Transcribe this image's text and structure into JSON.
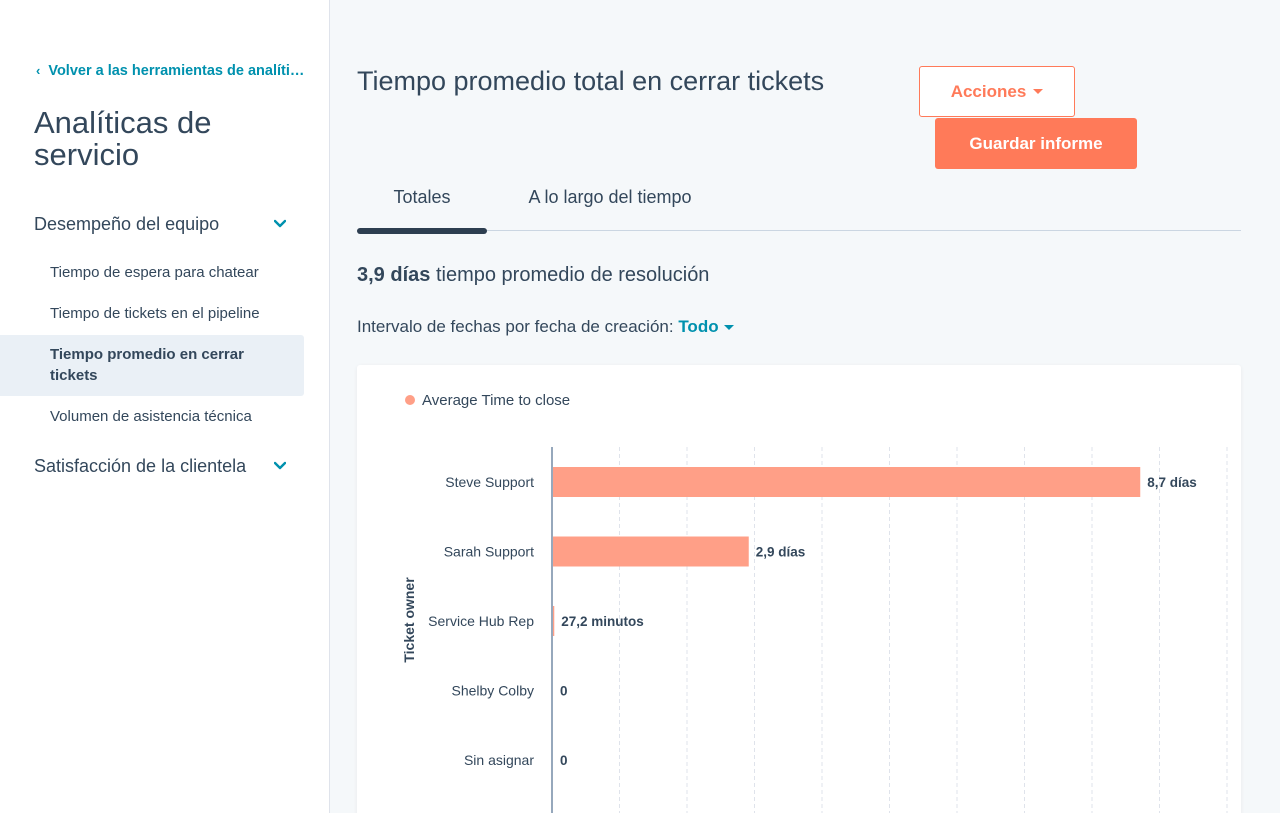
{
  "sidebar": {
    "back_link": "Volver a las herramientas de analíticas",
    "title": "Analíticas de servicio",
    "sections": [
      {
        "label": "Desempeño del equipo",
        "items": [
          {
            "label": "Tiempo de espera para chatear"
          },
          {
            "label": "Tiempo de tickets en el pipeline"
          },
          {
            "label": "Tiempo promedio en cerrar tickets",
            "active": true
          },
          {
            "label": "Volumen de asistencia técnica"
          }
        ]
      },
      {
        "label": "Satisfacción de la clientela",
        "items": []
      }
    ]
  },
  "main": {
    "title": "Tiempo promedio total en cerrar tickets",
    "actions_label": "Acciones",
    "save_label": "Guardar informe",
    "tabs": [
      {
        "label": "Totales",
        "active": true
      },
      {
        "label": "A lo largo del tiempo",
        "active": false
      }
    ],
    "summary_value": "3,9 días",
    "summary_text": " tiempo promedio de resolución",
    "date_filter_label": "Intervalo de fechas por fecha de creación: ",
    "date_filter_value": "Todo"
  },
  "colors": {
    "accent": "#ff7a59",
    "link": "#0091ae",
    "bar": "#ff9f87",
    "text": "#33475b"
  },
  "chart_data": {
    "type": "bar",
    "orientation": "horizontal",
    "ylabel": "Ticket owner",
    "xlabel": "",
    "series": [
      {
        "name": "Average Time to close",
        "values_days": [
          8.7,
          2.9,
          0.0189,
          0,
          0
        ],
        "labels": [
          "8,7 días",
          "2,9 días",
          "27,2 minutos",
          "0",
          "0"
        ]
      }
    ],
    "categories": [
      "Steve Support",
      "Sarah Support",
      "Service Hub Rep",
      "Shelby Colby",
      "Sin asignar"
    ],
    "xlim_days": [
      0,
      10
    ],
    "grid": true,
    "legend_position": "top-left"
  }
}
